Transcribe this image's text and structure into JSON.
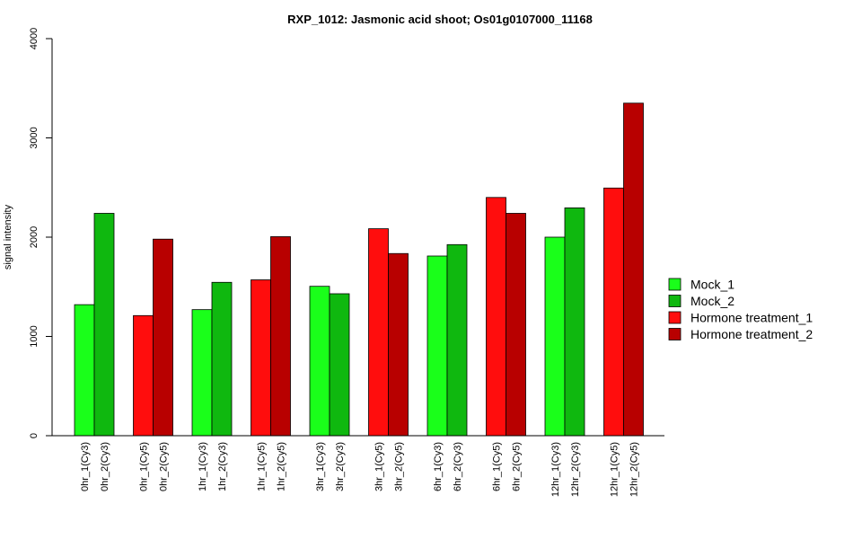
{
  "chart_data": {
    "type": "bar",
    "title": "RXP_1012: Jasmonic acid shoot; Os01g0107000_11168",
    "xlabel": "",
    "ylabel": "signal intensity",
    "ylim": [
      0,
      4000
    ],
    "yticks": [
      0,
      1000,
      2000,
      3000,
      4000
    ],
    "grid": false,
    "legend_position": "right",
    "categories": [
      "0hr_1(Cy3)",
      "0hr_2(Cy3)",
      "0hr_1(Cy5)",
      "0hr_2(Cy5)",
      "1hr_1(Cy3)",
      "1hr_2(Cy3)",
      "1hr_1(Cy5)",
      "1hr_2(Cy5)",
      "3hr_1(Cy3)",
      "3hr_2(Cy3)",
      "3hr_1(Cy5)",
      "3hr_2(Cy5)",
      "6hr_1(Cy3)",
      "6hr_2(Cy3)",
      "6hr_1(Cy5)",
      "6hr_2(Cy5)",
      "12hr_1(Cy3)",
      "12hr_2(Cy3)",
      "12hr_1(Cy5)",
      "12hr_2(Cy5)"
    ],
    "values": [
      1320,
      2240,
      1210,
      1980,
      1270,
      1545,
      1570,
      2005,
      1505,
      1430,
      2085,
      1835,
      1810,
      1925,
      2400,
      2240,
      2000,
      2295,
      2495,
      3350
    ],
    "bar_series": [
      0,
      1,
      2,
      3,
      0,
      1,
      2,
      3,
      0,
      1,
      2,
      3,
      0,
      1,
      2,
      3,
      0,
      1,
      2,
      3
    ],
    "legend": [
      {
        "name": "Mock_1",
        "color": "#1aff1a"
      },
      {
        "name": "Mock_2",
        "color": "#0fb80f"
      },
      {
        "name": "Hormone treatment_1",
        "color": "#ff0d0d"
      },
      {
        "name": "Hormone treatment_2",
        "color": "#b80000"
      }
    ]
  }
}
